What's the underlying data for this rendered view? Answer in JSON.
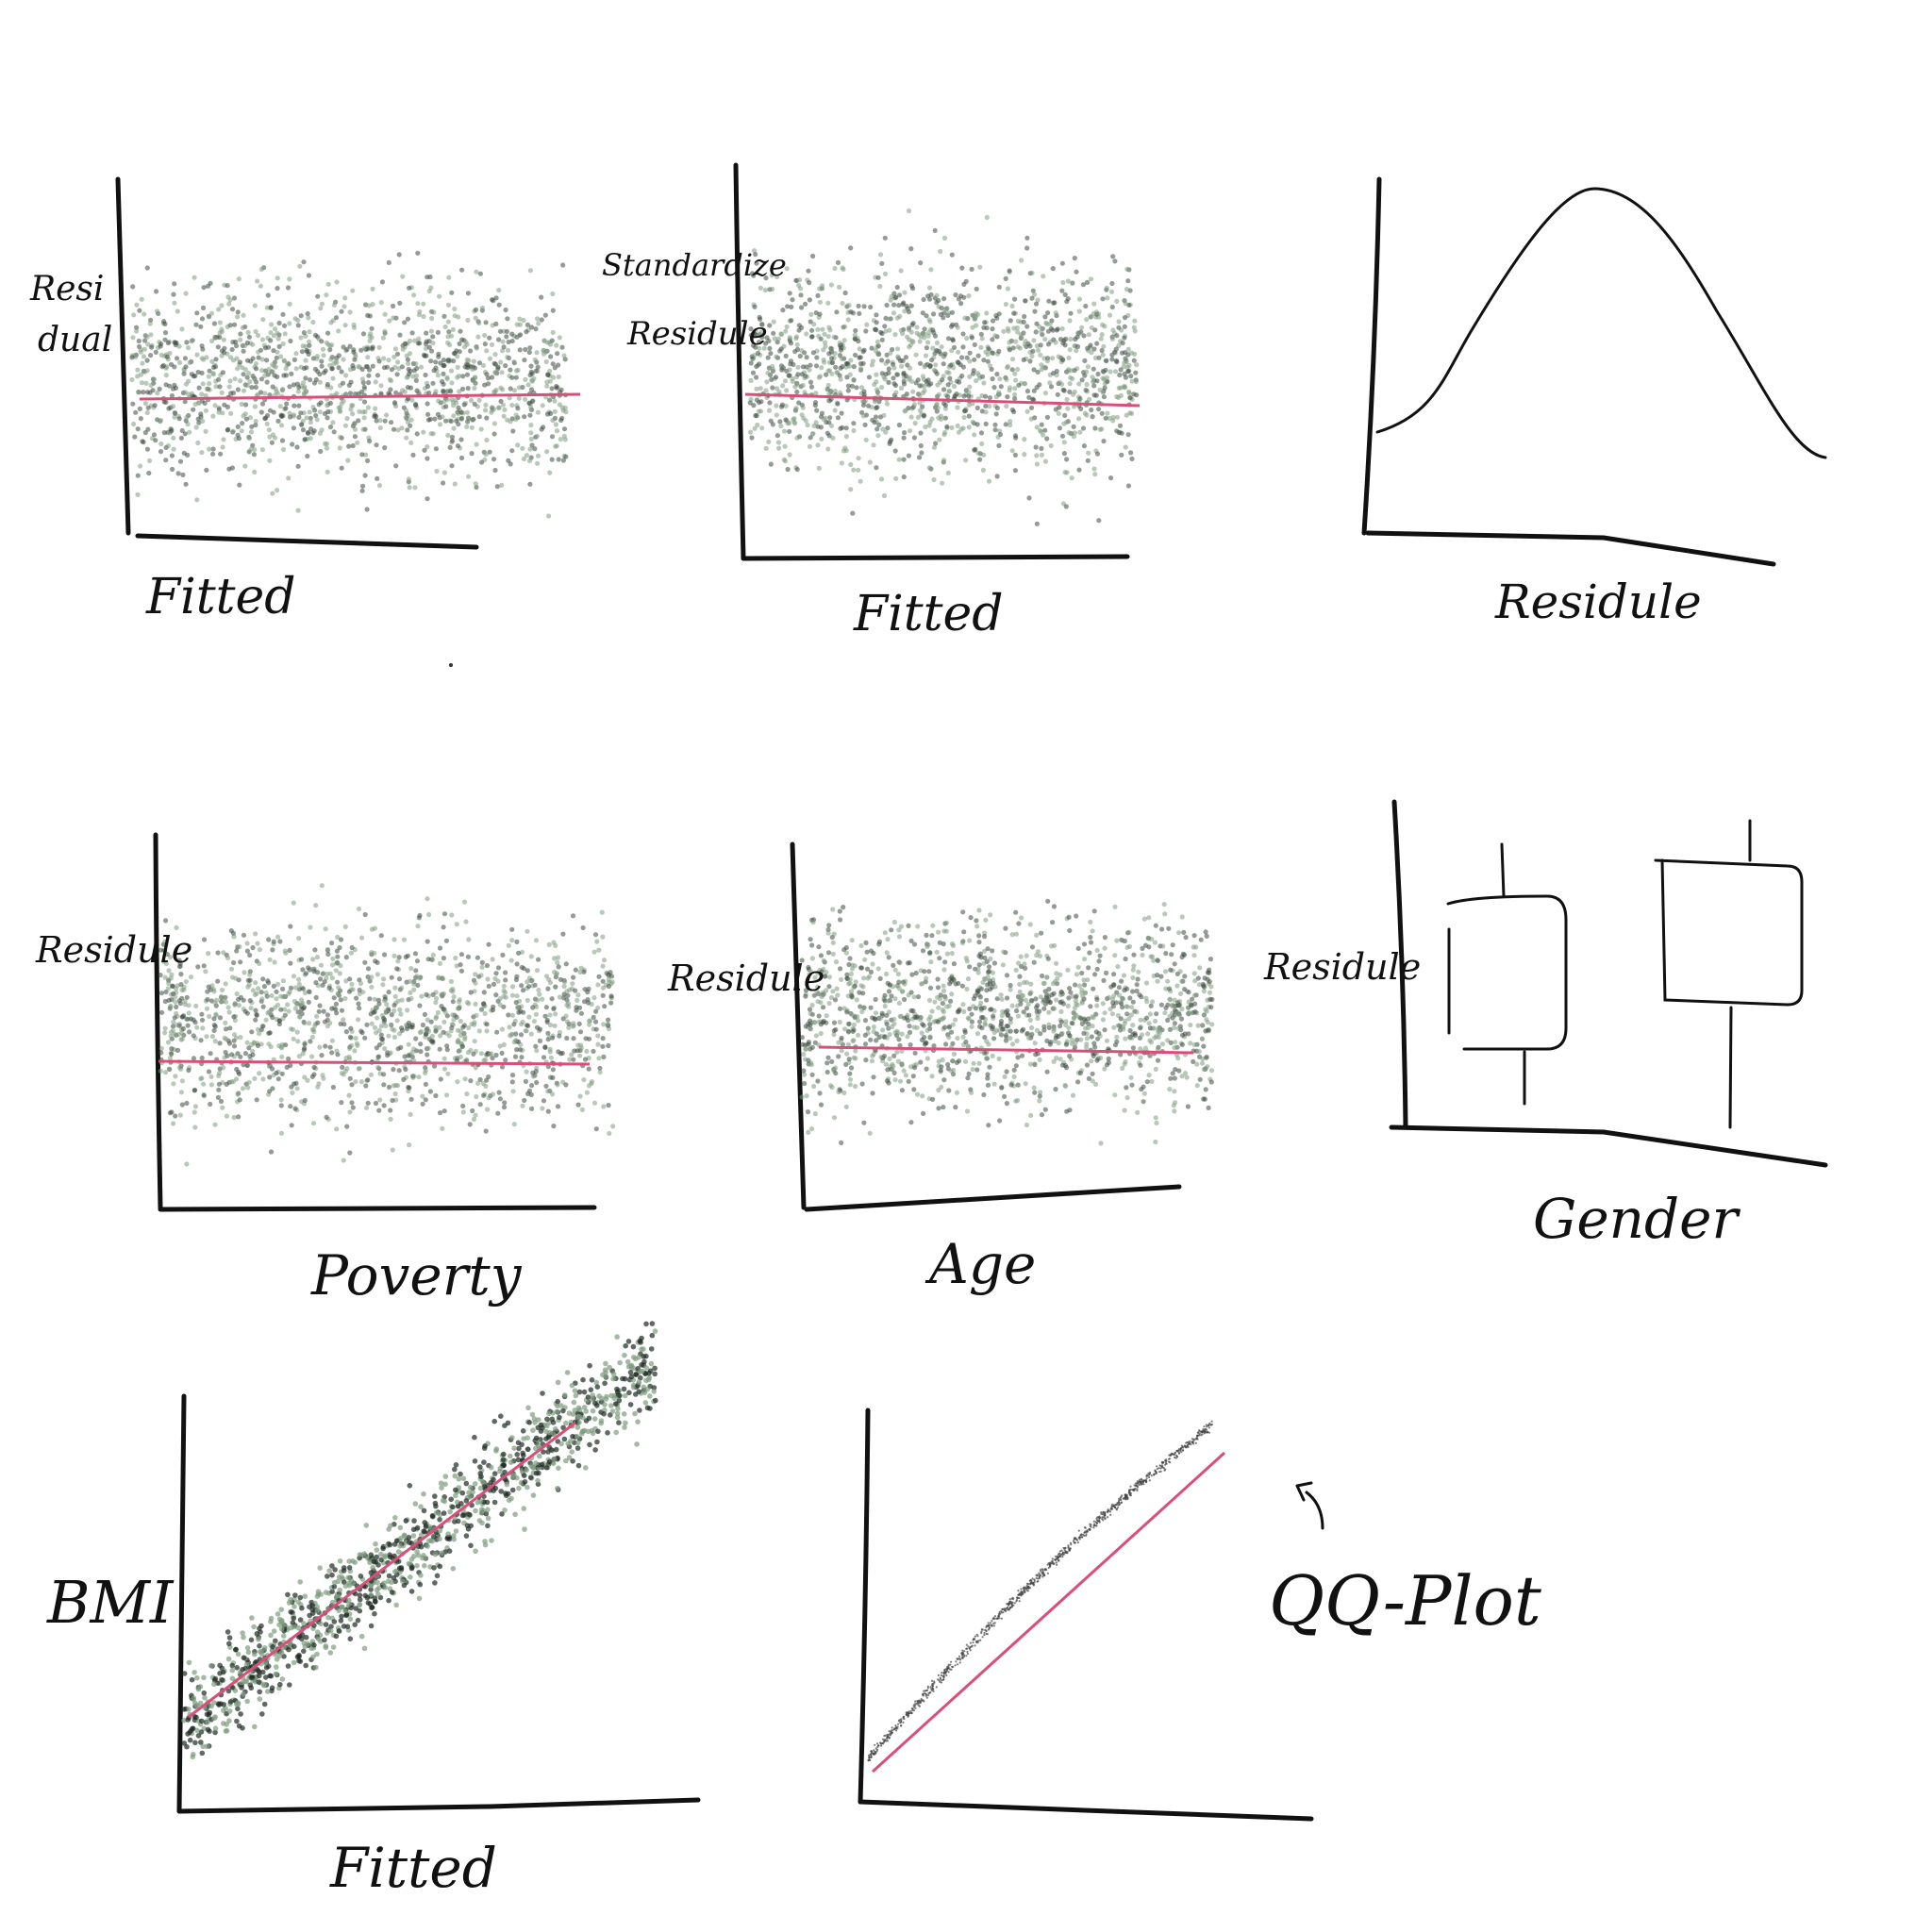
{
  "colors": {
    "ink": "#111111",
    "fit_line": "#d94f7a",
    "dot_green": "#7f9c7f",
    "dot_dark": "#3c4a3f"
  },
  "panels": [
    {
      "id": "p1",
      "kind": "scatter",
      "ylabel_lines": [
        "Resi",
        "dual"
      ],
      "xlabel": "Fitted"
    },
    {
      "id": "p2",
      "kind": "scatter",
      "ylabel_lines": [
        "Standardize",
        "Residule"
      ],
      "xlabel": "Fitted"
    },
    {
      "id": "p3",
      "kind": "density",
      "xlabel": "Residule"
    },
    {
      "id": "p4",
      "kind": "scatter",
      "ylabel_lines": [
        "Residule"
      ],
      "xlabel": "Poverty"
    },
    {
      "id": "p5",
      "kind": "scatter",
      "ylabel_lines": [
        "Residule"
      ],
      "xlabel": "Age"
    },
    {
      "id": "p6",
      "kind": "boxplot",
      "ylabel_lines": [
        "Residule"
      ],
      "xlabel": "Gender"
    },
    {
      "id": "p7",
      "kind": "scatter",
      "ylabel_lines": [
        "BMI"
      ],
      "xlabel": "Fitted"
    },
    {
      "id": "p8",
      "kind": "qq",
      "annotation": "QQ-Plot"
    }
  ]
}
